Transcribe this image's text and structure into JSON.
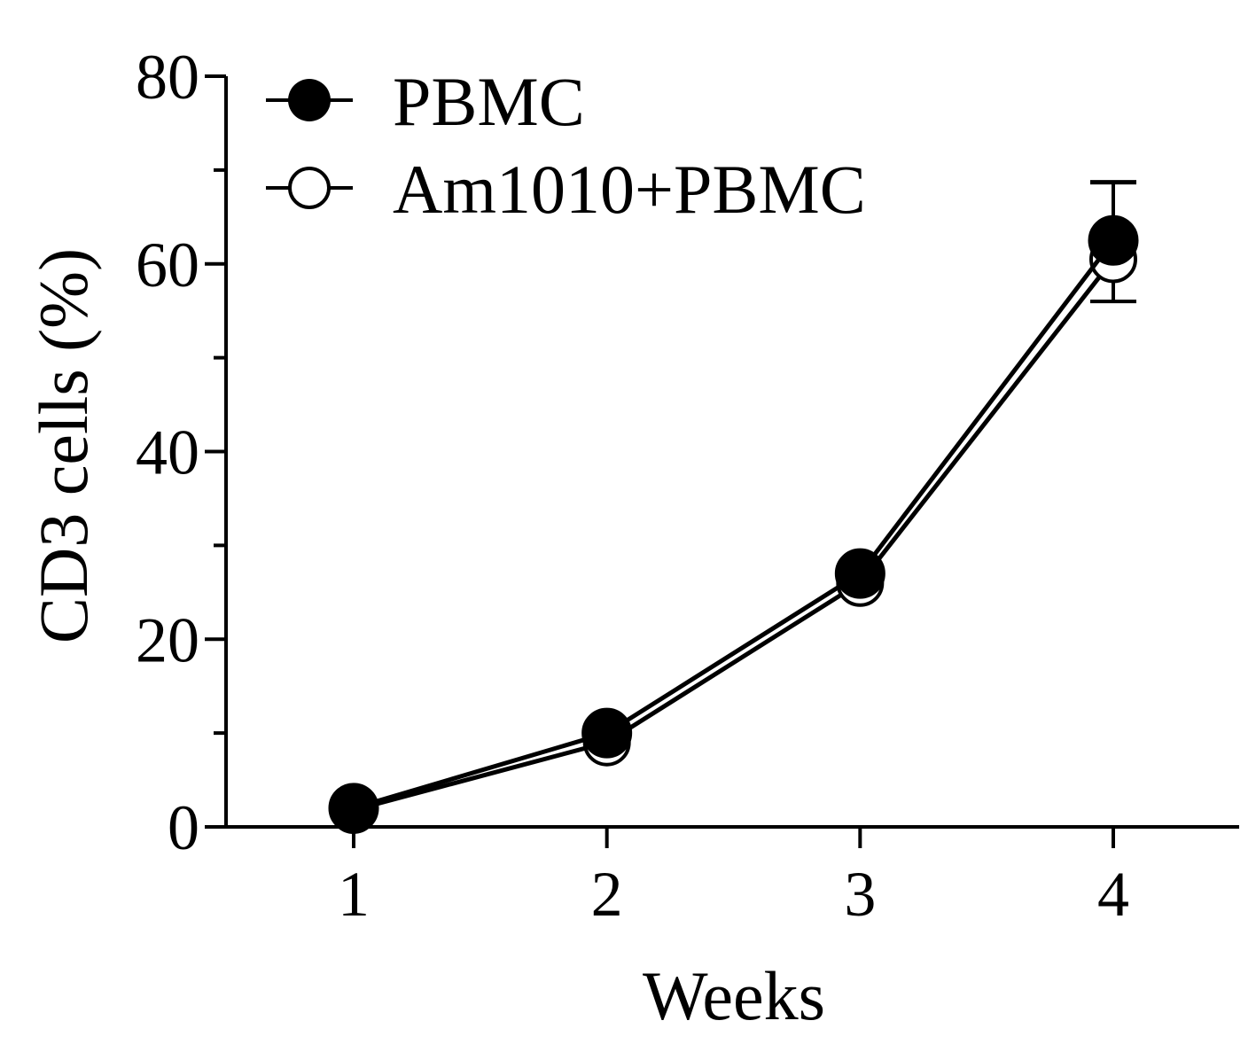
{
  "chart_data": {
    "type": "line",
    "title": "",
    "xlabel": "Weeks",
    "ylabel": "CD3 cells (%)",
    "x": [
      1,
      2,
      3,
      4
    ],
    "xlim": [
      0.5,
      4.5
    ],
    "ylim": [
      0,
      80
    ],
    "y_major_ticks": [
      0,
      20,
      40,
      60,
      80
    ],
    "y_minor_ticks": [
      10,
      30,
      50,
      70
    ],
    "x_ticks": [
      1,
      2,
      3,
      4
    ],
    "grid": false,
    "legend_position": "top-left",
    "series": [
      {
        "name": "PBMC",
        "marker": "filled-circle",
        "values": [
          2,
          10,
          27,
          62.5
        ],
        "error": [
          0,
          0,
          0,
          6.2
        ],
        "color": "#000000"
      },
      {
        "name": "Am1010+PBMC",
        "marker": "open-circle",
        "values": [
          1.8,
          9,
          26,
          60.5
        ],
        "error": [
          0,
          0,
          0,
          4.5
        ],
        "color": "#000000"
      }
    ]
  }
}
